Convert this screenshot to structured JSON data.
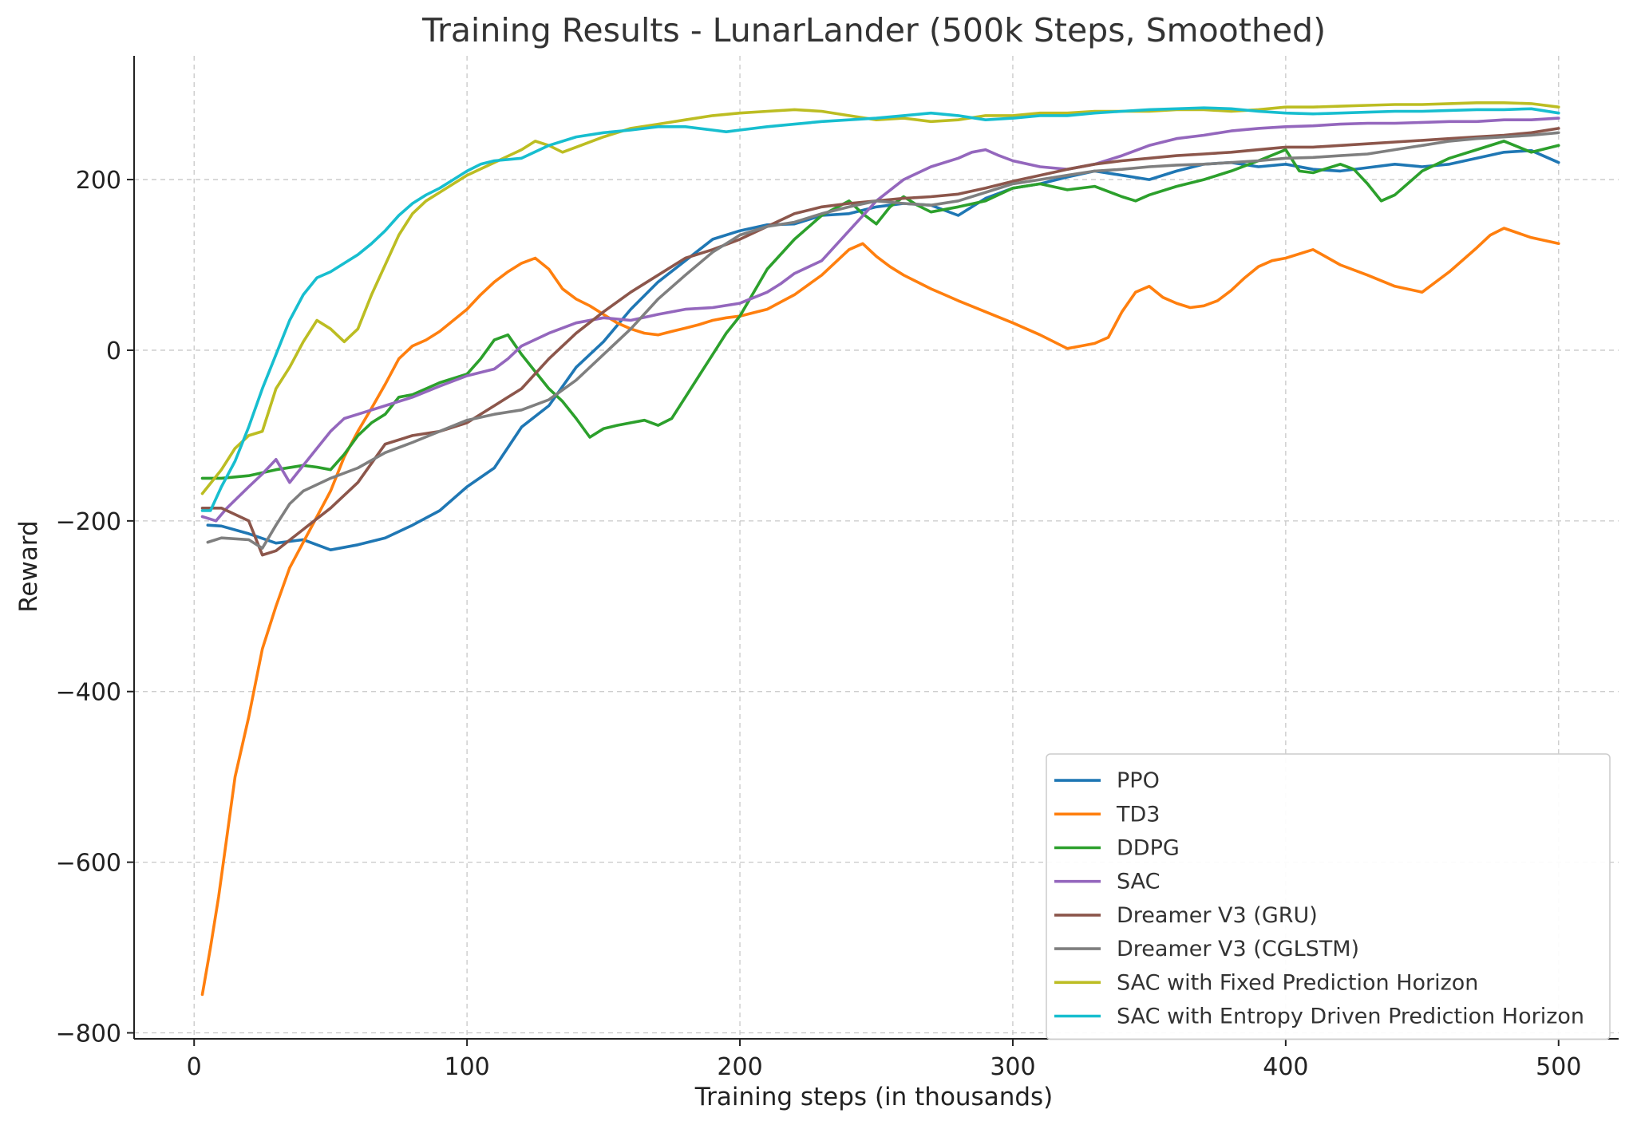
{
  "chart_data": {
    "type": "line",
    "title": "Training Results - LunarLander (500k Steps, Smoothed)",
    "xlabel": "Training steps (in thousands)",
    "ylabel": "Reward",
    "xlim": [
      -22,
      522
    ],
    "ylim": [
      -807,
      345
    ],
    "xticks": [
      0,
      100,
      200,
      300,
      400,
      500
    ],
    "yticks": [
      -800,
      -600,
      -400,
      -200,
      0,
      200
    ],
    "xtick_labels": [
      "0",
      "100",
      "200",
      "300",
      "400",
      "500"
    ],
    "ytick_labels": [
      "−800",
      "−600",
      "−400",
      "−200",
      "0",
      "200"
    ],
    "grid": true,
    "legend_position": "lower-right",
    "series": [
      {
        "name": "PPO",
        "color": "#1f77b4",
        "x": [
          5,
          10,
          20,
          30,
          40,
          50,
          60,
          70,
          80,
          90,
          100,
          110,
          120,
          130,
          140,
          150,
          160,
          170,
          180,
          190,
          200,
          210,
          220,
          230,
          240,
          250,
          260,
          270,
          280,
          290,
          300,
          310,
          320,
          330,
          340,
          350,
          360,
          370,
          380,
          390,
          400,
          410,
          420,
          430,
          440,
          450,
          460,
          470,
          480,
          490,
          500
        ],
        "y": [
          -205,
          -206,
          -215,
          -226,
          -222,
          -234,
          -228,
          -220,
          -205,
          -188,
          -160,
          -138,
          -90,
          -65,
          -20,
          10,
          48,
          80,
          105,
          130,
          140,
          147,
          148,
          158,
          160,
          168,
          172,
          170,
          158,
          178,
          190,
          195,
          203,
          210,
          205,
          200,
          210,
          218,
          220,
          215,
          218,
          212,
          210,
          214,
          218,
          215,
          218,
          225,
          232,
          234,
          220
        ]
      },
      {
        "name": "TD3",
        "color": "#ff7f0e",
        "x": [
          3,
          6,
          9,
          12,
          15,
          20,
          25,
          30,
          35,
          40,
          45,
          50,
          55,
          60,
          65,
          70,
          75,
          80,
          85,
          90,
          95,
          100,
          105,
          110,
          115,
          120,
          125,
          130,
          135,
          140,
          145,
          150,
          155,
          160,
          165,
          170,
          175,
          180,
          185,
          190,
          195,
          200,
          210,
          220,
          230,
          240,
          245,
          250,
          255,
          260,
          265,
          270,
          275,
          280,
          290,
          300,
          310,
          320,
          325,
          330,
          335,
          340,
          345,
          350,
          355,
          360,
          365,
          370,
          375,
          380,
          385,
          390,
          395,
          400,
          410,
          420,
          430,
          440,
          450,
          460,
          470,
          475,
          480,
          490,
          500
        ],
        "y": [
          -755,
          -700,
          -640,
          -570,
          -500,
          -430,
          -350,
          -300,
          -255,
          -225,
          -195,
          -165,
          -125,
          -95,
          -68,
          -40,
          -10,
          5,
          12,
          22,
          35,
          48,
          65,
          80,
          92,
          102,
          108,
          95,
          72,
          60,
          52,
          42,
          32,
          25,
          20,
          18,
          22,
          26,
          30,
          35,
          38,
          40,
          48,
          65,
          88,
          118,
          125,
          110,
          98,
          88,
          80,
          72,
          65,
          58,
          45,
          32,
          18,
          2,
          5,
          8,
          15,
          45,
          68,
          75,
          62,
          55,
          50,
          52,
          58,
          70,
          85,
          98,
          105,
          108,
          118,
          100,
          88,
          75,
          68,
          92,
          120,
          135,
          143,
          132,
          125
        ]
      },
      {
        "name": "DDPG",
        "color": "#2ca02c",
        "x": [
          3,
          10,
          20,
          30,
          40,
          45,
          50,
          55,
          60,
          65,
          70,
          75,
          80,
          90,
          100,
          105,
          110,
          115,
          120,
          125,
          130,
          135,
          140,
          145,
          150,
          155,
          160,
          165,
          170,
          175,
          180,
          185,
          190,
          195,
          200,
          210,
          220,
          230,
          240,
          245,
          250,
          255,
          260,
          265,
          270,
          280,
          290,
          300,
          310,
          320,
          330,
          340,
          345,
          350,
          360,
          370,
          380,
          390,
          400,
          405,
          410,
          420,
          425,
          430,
          435,
          440,
          450,
          460,
          470,
          480,
          490,
          500
        ],
        "y": [
          -150,
          -150,
          -147,
          -140,
          -135,
          -137,
          -140,
          -122,
          -100,
          -85,
          -75,
          -55,
          -52,
          -38,
          -28,
          -10,
          12,
          18,
          -5,
          -25,
          -45,
          -60,
          -80,
          -102,
          -92,
          -88,
          -85,
          -82,
          -88,
          -80,
          -55,
          -30,
          -5,
          20,
          40,
          95,
          130,
          158,
          175,
          160,
          148,
          168,
          180,
          170,
          162,
          168,
          175,
          190,
          195,
          188,
          192,
          180,
          175,
          182,
          192,
          200,
          210,
          222,
          235,
          210,
          208,
          218,
          212,
          195,
          175,
          182,
          210,
          225,
          235,
          245,
          232,
          240
        ]
      },
      {
        "name": "SAC",
        "color": "#9467bd",
        "x": [
          3,
          8,
          12,
          20,
          25,
          30,
          35,
          40,
          45,
          50,
          55,
          60,
          70,
          80,
          90,
          100,
          110,
          115,
          120,
          130,
          140,
          150,
          160,
          170,
          180,
          190,
          200,
          210,
          215,
          220,
          230,
          240,
          250,
          260,
          270,
          280,
          285,
          290,
          295,
          300,
          310,
          320,
          330,
          340,
          350,
          360,
          370,
          380,
          390,
          400,
          410,
          420,
          430,
          440,
          450,
          460,
          470,
          480,
          490,
          500
        ],
        "y": [
          -195,
          -200,
          -185,
          -160,
          -145,
          -128,
          -155,
          -135,
          -115,
          -95,
          -80,
          -75,
          -65,
          -55,
          -42,
          -30,
          -22,
          -10,
          5,
          20,
          32,
          38,
          35,
          42,
          48,
          50,
          55,
          68,
          78,
          90,
          105,
          140,
          175,
          200,
          215,
          225,
          232,
          235,
          228,
          222,
          215,
          212,
          218,
          228,
          240,
          248,
          252,
          257,
          260,
          262,
          263,
          265,
          266,
          266,
          267,
          268,
          268,
          270,
          270,
          272
        ]
      },
      {
        "name": "Dreamer V3 (GRU)",
        "color": "#8c564b",
        "x": [
          3,
          10,
          20,
          25,
          30,
          40,
          50,
          60,
          70,
          80,
          90,
          100,
          110,
          120,
          130,
          140,
          150,
          160,
          170,
          180,
          190,
          200,
          210,
          220,
          230,
          240,
          250,
          260,
          270,
          280,
          290,
          300,
          310,
          320,
          330,
          340,
          350,
          360,
          370,
          380,
          390,
          400,
          410,
          420,
          430,
          440,
          450,
          460,
          470,
          480,
          490,
          500
        ],
        "y": [
          -185,
          -185,
          -200,
          -240,
          -235,
          -210,
          -185,
          -155,
          -110,
          -100,
          -95,
          -85,
          -65,
          -45,
          -10,
          20,
          45,
          68,
          88,
          108,
          118,
          130,
          145,
          160,
          168,
          172,
          175,
          178,
          180,
          183,
          190,
          198,
          205,
          212,
          218,
          222,
          225,
          228,
          230,
          232,
          235,
          238,
          238,
          240,
          242,
          244,
          246,
          248,
          250,
          252,
          255,
          260
        ]
      },
      {
        "name": "Dreamer V3 (CGLSTM)",
        "color": "#7f7f7f",
        "x": [
          5,
          10,
          20,
          25,
          30,
          35,
          40,
          50,
          60,
          70,
          80,
          90,
          100,
          110,
          120,
          130,
          140,
          150,
          160,
          170,
          180,
          190,
          200,
          210,
          220,
          230,
          240,
          250,
          260,
          270,
          280,
          290,
          300,
          310,
          320,
          330,
          340,
          350,
          360,
          370,
          380,
          390,
          400,
          410,
          420,
          430,
          440,
          450,
          460,
          470,
          480,
          490,
          500
        ],
        "y": [
          -225,
          -220,
          -222,
          -232,
          -205,
          -180,
          -165,
          -150,
          -138,
          -120,
          -108,
          -95,
          -82,
          -75,
          -70,
          -58,
          -35,
          -5,
          25,
          60,
          88,
          115,
          135,
          145,
          150,
          160,
          168,
          175,
          172,
          170,
          175,
          185,
          195,
          200,
          205,
          210,
          212,
          215,
          217,
          218,
          220,
          222,
          225,
          226,
          228,
          230,
          235,
          240,
          245,
          248,
          250,
          252,
          255
        ]
      },
      {
        "name": "SAC with Fixed Prediction Horizon",
        "color": "#bcbd22",
        "x": [
          3,
          10,
          15,
          20,
          25,
          30,
          35,
          40,
          45,
          50,
          55,
          60,
          65,
          70,
          75,
          80,
          85,
          90,
          95,
          100,
          110,
          120,
          125,
          130,
          135,
          140,
          150,
          160,
          170,
          180,
          190,
          200,
          210,
          220,
          230,
          240,
          250,
          260,
          270,
          280,
          290,
          300,
          310,
          320,
          330,
          340,
          350,
          360,
          370,
          380,
          390,
          400,
          410,
          420,
          430,
          440,
          450,
          460,
          470,
          480,
          490,
          500
        ],
        "y": [
          -168,
          -140,
          -115,
          -100,
          -95,
          -45,
          -20,
          10,
          35,
          25,
          10,
          25,
          65,
          100,
          135,
          160,
          175,
          185,
          195,
          205,
          220,
          235,
          245,
          240,
          232,
          238,
          250,
          260,
          265,
          270,
          275,
          278,
          280,
          282,
          280,
          275,
          270,
          272,
          268,
          270,
          275,
          275,
          278,
          278,
          280,
          280,
          280,
          282,
          282,
          280,
          282,
          285,
          285,
          286,
          287,
          288,
          288,
          289,
          290,
          290,
          289,
          285
        ]
      },
      {
        "name": "SAC with Entropy Driven Prediction Horizon",
        "color": "#17becf",
        "x": [
          3,
          6,
          10,
          15,
          20,
          25,
          30,
          35,
          40,
          45,
          50,
          55,
          60,
          65,
          70,
          75,
          80,
          85,
          90,
          95,
          100,
          105,
          110,
          120,
          130,
          140,
          150,
          160,
          170,
          180,
          190,
          195,
          200,
          210,
          220,
          230,
          240,
          250,
          260,
          270,
          280,
          290,
          300,
          310,
          320,
          330,
          340,
          350,
          360,
          370,
          380,
          390,
          400,
          410,
          420,
          430,
          440,
          450,
          460,
          470,
          480,
          490,
          500
        ],
        "y": [
          -188,
          -188,
          -160,
          -130,
          -90,
          -45,
          -5,
          35,
          65,
          85,
          92,
          102,
          112,
          125,
          140,
          158,
          172,
          182,
          190,
          200,
          210,
          218,
          222,
          225,
          240,
          250,
          255,
          258,
          262,
          262,
          258,
          256,
          258,
          262,
          265,
          268,
          270,
          272,
          275,
          278,
          275,
          270,
          272,
          275,
          275,
          278,
          280,
          282,
          283,
          284,
          283,
          280,
          278,
          277,
          278,
          279,
          280,
          280,
          281,
          282,
          282,
          283,
          278
        ]
      }
    ]
  }
}
